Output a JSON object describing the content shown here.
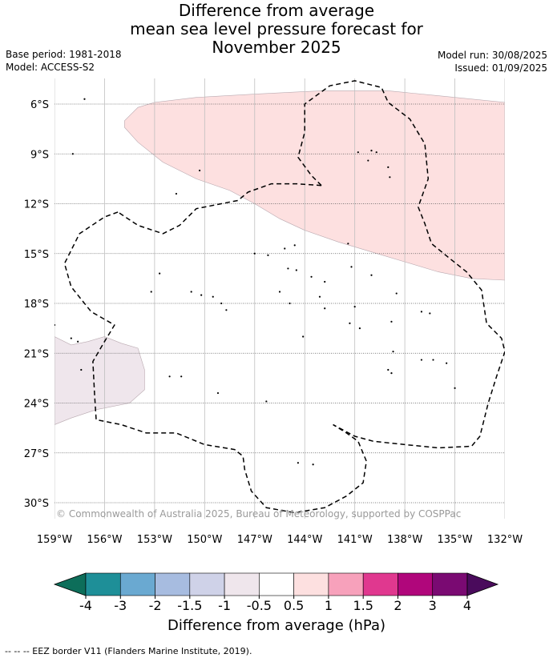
{
  "title": {
    "line1": "Difference from average",
    "line2": "mean sea level pressure forecast for",
    "line3": "November 2025"
  },
  "meta": {
    "base_period": "Base period: 1981-2018",
    "model": "Model: ACCESS-S2",
    "model_run": "Model run: 30/08/2025",
    "issued": "Issued: 01/09/2025"
  },
  "map": {
    "lon_range": [
      -159,
      -132
    ],
    "lat_range": [
      -31,
      -4.5
    ],
    "lat_ticks": [
      {
        "value": -6,
        "label": "6°S"
      },
      {
        "value": -9,
        "label": "9°S"
      },
      {
        "value": -12,
        "label": "12°S"
      },
      {
        "value": -15,
        "label": "15°S"
      },
      {
        "value": -18,
        "label": "18°S"
      },
      {
        "value": -21,
        "label": "21°S"
      },
      {
        "value": -24,
        "label": "24°S"
      },
      {
        "value": -27,
        "label": "27°S"
      },
      {
        "value": -30,
        "label": "30°S"
      }
    ],
    "lon_ticks": [
      {
        "value": -159,
        "label": "159°W"
      },
      {
        "value": -156,
        "label": "156°W"
      },
      {
        "value": -153,
        "label": "153°W"
      },
      {
        "value": -150,
        "label": "150°W"
      },
      {
        "value": -147,
        "label": "147°W"
      },
      {
        "value": -144,
        "label": "144°W"
      },
      {
        "value": -141,
        "label": "141°W"
      },
      {
        "value": -138,
        "label": "138°W"
      },
      {
        "value": -135,
        "label": "135°W"
      },
      {
        "value": -132,
        "label": "132°W"
      }
    ],
    "gridlines": true,
    "copyright": "© Commonwealth of Australia 2025, Bureau of Meteorology, supported by COSPPac",
    "anomaly_regions": [
      {
        "category": "0.5 to 1",
        "color": "#fde0e0",
        "lonlat": [
          [
            -154.8,
            -7.0
          ],
          [
            -154.0,
            -6.2
          ],
          [
            -153.0,
            -5.9
          ],
          [
            -150.5,
            -5.6
          ],
          [
            -147.0,
            -5.4
          ],
          [
            -143.0,
            -5.2
          ],
          [
            -139.0,
            -5.2
          ],
          [
            -136.0,
            -5.5
          ],
          [
            -132.0,
            -5.9
          ],
          [
            -132.0,
            -16.6
          ],
          [
            -134.0,
            -16.5
          ],
          [
            -136.0,
            -16.1
          ],
          [
            -138.0,
            -15.5
          ],
          [
            -140.0,
            -14.9
          ],
          [
            -142.0,
            -14.3
          ],
          [
            -144.0,
            -13.6
          ],
          [
            -145.5,
            -12.9
          ],
          [
            -147.0,
            -12.0
          ],
          [
            -148.5,
            -11.2
          ],
          [
            -150.5,
            -10.5
          ],
          [
            -152.5,
            -9.5
          ],
          [
            -154.0,
            -8.3
          ],
          [
            -154.8,
            -7.4
          ]
        ]
      },
      {
        "category": "-1 to -0.5",
        "color": "#efe6ec",
        "lonlat": [
          [
            -159.0,
            -20.0
          ],
          [
            -158.0,
            -20.5
          ],
          [
            -157.0,
            -20.3
          ],
          [
            -156.0,
            -20.0
          ],
          [
            -155.0,
            -20.4
          ],
          [
            -154.0,
            -20.7
          ],
          [
            -153.6,
            -22.0
          ],
          [
            -153.6,
            -23.2
          ],
          [
            -154.5,
            -24.0
          ],
          [
            -156.5,
            -24.4
          ],
          [
            -158.0,
            -24.9
          ],
          [
            -159.0,
            -25.3
          ]
        ]
      }
    ],
    "eez_borders": [
      {
        "name": "EEZ western",
        "lonlat": [
          [
            -155.2,
            -12.5
          ],
          [
            -156.0,
            -12.8
          ],
          [
            -157.5,
            -13.8
          ],
          [
            -158.4,
            -15.6
          ],
          [
            -158.0,
            -17.0
          ],
          [
            -156.8,
            -18.5
          ],
          [
            -155.4,
            -19.3
          ],
          [
            -156.0,
            -20.3
          ],
          [
            -156.7,
            -21.5
          ],
          [
            -156.6,
            -23.5
          ],
          [
            -156.5,
            -25.0
          ],
          [
            -155.0,
            -25.3
          ],
          [
            -153.5,
            -25.8
          ],
          [
            -151.7,
            -25.8
          ],
          [
            -150.0,
            -26.5
          ],
          [
            -148.2,
            -26.8
          ],
          [
            -147.7,
            -27.2
          ],
          [
            -147.6,
            -28.0
          ],
          [
            -147.2,
            -29.3
          ],
          [
            -146.3,
            -30.3
          ],
          [
            -144.6,
            -30.6
          ],
          [
            -142.8,
            -30.3
          ],
          [
            -141.5,
            -29.6
          ],
          [
            -140.5,
            -28.8
          ],
          [
            -140.3,
            -27.5
          ],
          [
            -140.8,
            -26.3
          ],
          [
            -141.5,
            -25.8
          ],
          [
            -142.3,
            -25.3
          ]
        ]
      },
      {
        "name": "EEZ northern",
        "lonlat": [
          [
            -143.0,
            -10.9
          ],
          [
            -144.5,
            -10.8
          ],
          [
            -146.0,
            -10.8
          ],
          [
            -147.4,
            -11.3
          ],
          [
            -148.0,
            -11.8
          ],
          [
            -149.0,
            -12.0
          ],
          [
            -150.5,
            -12.3
          ],
          [
            -151.5,
            -13.3
          ],
          [
            -152.5,
            -13.8
          ],
          [
            -154.0,
            -13.3
          ],
          [
            -155.2,
            -12.5
          ]
        ]
      },
      {
        "name": "EEZ Marquesas and eastern",
        "lonlat": [
          [
            -143.0,
            -10.9
          ],
          [
            -143.6,
            -10.3
          ],
          [
            -144.4,
            -9.2
          ],
          [
            -144.0,
            -7.7
          ],
          [
            -144.0,
            -6.0
          ],
          [
            -142.5,
            -4.9
          ],
          [
            -141.0,
            -4.6
          ],
          [
            -139.4,
            -5.0
          ],
          [
            -139.0,
            -5.9
          ],
          [
            -137.7,
            -6.9
          ],
          [
            -136.8,
            -8.4
          ],
          [
            -136.6,
            -10.5
          ],
          [
            -137.2,
            -12.2
          ],
          [
            -136.8,
            -13.2
          ],
          [
            -136.4,
            -14.4
          ],
          [
            -135.3,
            -15.3
          ],
          [
            -134.3,
            -16.1
          ],
          [
            -133.4,
            -17.2
          ],
          [
            -133.1,
            -19.2
          ],
          [
            -132.2,
            -20.1
          ],
          [
            -132.0,
            -20.9
          ],
          [
            -132.5,
            -22.4
          ],
          [
            -133.0,
            -24.0
          ],
          [
            -133.5,
            -26.0
          ],
          [
            -134.0,
            -26.6
          ],
          [
            -136.0,
            -26.7
          ],
          [
            -138.0,
            -26.5
          ],
          [
            -139.9,
            -26.3
          ],
          [
            -141.0,
            -26.0
          ],
          [
            -142.3,
            -25.3
          ]
        ]
      }
    ],
    "islands": [
      {
        "lon": -157.2,
        "lat": -5.7
      },
      {
        "lon": -157.9,
        "lat": -9.0
      },
      {
        "lon": -150.3,
        "lat": -10.0
      },
      {
        "lon": -151.7,
        "lat": -11.4
      },
      {
        "lon": -140.8,
        "lat": -8.9
      },
      {
        "lon": -140.0,
        "lat": -8.8
      },
      {
        "lon": -139.7,
        "lat": -8.9
      },
      {
        "lon": -140.2,
        "lat": -9.4
      },
      {
        "lon": -139.0,
        "lat": -9.8
      },
      {
        "lon": -138.9,
        "lat": -10.4
      },
      {
        "lon": -141.4,
        "lat": -14.4
      },
      {
        "lon": -141.2,
        "lat": -15.8
      },
      {
        "lon": -145.2,
        "lat": -14.7
      },
      {
        "lon": -144.6,
        "lat": -14.5
      },
      {
        "lon": -147.0,
        "lat": -15.0
      },
      {
        "lon": -146.2,
        "lat": -15.1
      },
      {
        "lon": -145.0,
        "lat": -15.9
      },
      {
        "lon": -144.5,
        "lat": -16.0
      },
      {
        "lon": -143.6,
        "lat": -16.4
      },
      {
        "lon": -142.8,
        "lat": -16.7
      },
      {
        "lon": -140.0,
        "lat": -16.3
      },
      {
        "lon": -138.5,
        "lat": -17.4
      },
      {
        "lon": -152.7,
        "lat": -16.2
      },
      {
        "lon": -153.2,
        "lat": -17.3
      },
      {
        "lon": -150.8,
        "lat": -17.3
      },
      {
        "lon": -150.2,
        "lat": -17.5
      },
      {
        "lon": -149.5,
        "lat": -17.6
      },
      {
        "lon": -149.0,
        "lat": -18.0
      },
      {
        "lon": -148.7,
        "lat": -18.4
      },
      {
        "lon": -145.5,
        "lat": -17.3
      },
      {
        "lon": -144.9,
        "lat": -18.0
      },
      {
        "lon": -143.1,
        "lat": -17.6
      },
      {
        "lon": -142.8,
        "lat": -18.3
      },
      {
        "lon": -141.0,
        "lat": -18.2
      },
      {
        "lon": -141.3,
        "lat": -19.2
      },
      {
        "lon": -140.7,
        "lat": -19.5
      },
      {
        "lon": -138.8,
        "lat": -19.1
      },
      {
        "lon": -137.0,
        "lat": -18.5
      },
      {
        "lon": -136.5,
        "lat": -18.6
      },
      {
        "lon": -144.1,
        "lat": -20.0
      },
      {
        "lon": -138.7,
        "lat": -20.9
      },
      {
        "lon": -137.0,
        "lat": -21.4
      },
      {
        "lon": -136.3,
        "lat": -21.4
      },
      {
        "lon": -135.5,
        "lat": -21.6
      },
      {
        "lon": -139.0,
        "lat": -22.0
      },
      {
        "lon": -138.8,
        "lat": -22.2
      },
      {
        "lon": -135.0,
        "lat": -23.1
      },
      {
        "lon": -158.0,
        "lat": -20.1
      },
      {
        "lon": -157.6,
        "lat": -20.3
      },
      {
        "lon": -157.4,
        "lat": -22.0
      },
      {
        "lon": -152.1,
        "lat": -22.4
      },
      {
        "lon": -151.4,
        "lat": -22.4
      },
      {
        "lon": -149.2,
        "lat": -23.4
      },
      {
        "lon": -146.3,
        "lat": -23.9
      },
      {
        "lon": -144.4,
        "lat": -27.6
      },
      {
        "lon": -143.5,
        "lat": -27.7
      },
      {
        "lon": -159.0,
        "lat": -19.3
      }
    ]
  },
  "colorbar": {
    "label": "Difference from average (hPa)",
    "colors": [
      "#0d6e5a",
      "#1e8f98",
      "#6aa9d1",
      "#a7bce0",
      "#cfd2e8",
      "#efe6ec",
      "#ffffff",
      "#fde0e0",
      "#f7a1bb",
      "#e0388f",
      "#b0067b",
      "#7a0a72",
      "#4a0b5c"
    ],
    "tick_labels": [
      "-4",
      "-3",
      "-2",
      "-1.5",
      "-1",
      "-0.5",
      "0.5",
      "1",
      "1.5",
      "2",
      "3",
      "4"
    ]
  },
  "footer": {
    "legend_text": "--  --  -- EEZ border V11 (Flanders Marine Institute, 2019)."
  }
}
